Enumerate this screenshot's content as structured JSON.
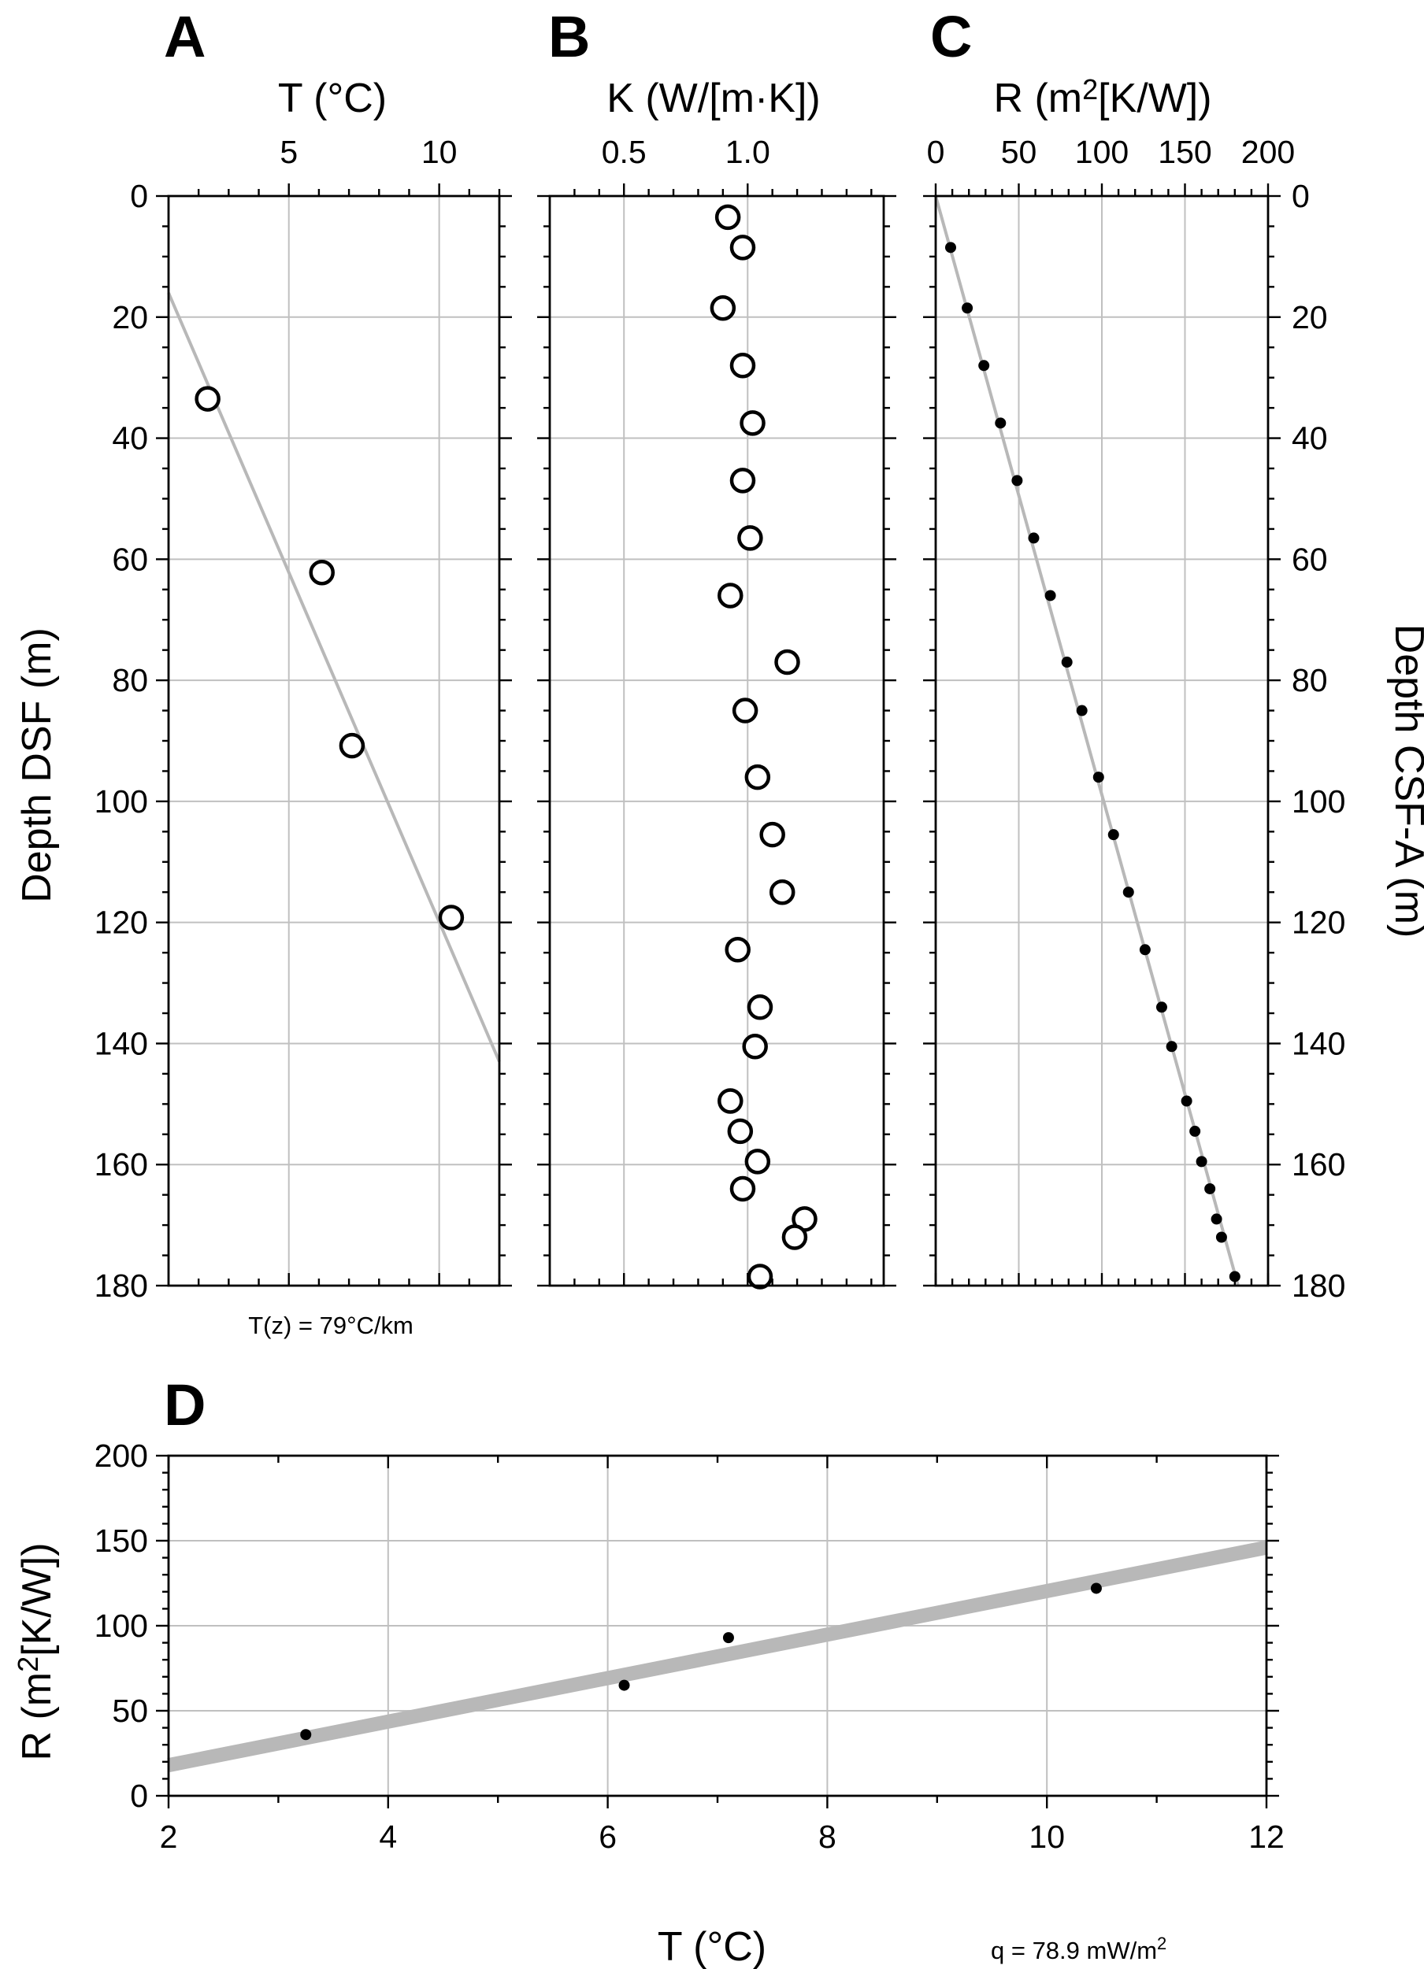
{
  "chart_data": [
    {
      "id": "A",
      "type": "scatter",
      "panel_label": "A",
      "xlabel": "T (°C)",
      "ylabel": "Depth DSF (m)",
      "xlim": [
        1,
        12
      ],
      "ylim": [
        0,
        180
      ],
      "xticks": [
        5,
        10
      ],
      "xminor": [
        2,
        3,
        4,
        6,
        7,
        8,
        9,
        11,
        12
      ],
      "yticks": [
        0,
        20,
        40,
        60,
        80,
        100,
        120,
        140,
        160,
        180
      ],
      "grid": true,
      "marker": "open-circle",
      "x": [
        2.3,
        6.1,
        7.1,
        10.4
      ],
      "y": [
        33.5,
        62.2,
        90.8,
        119.2
      ],
      "fit_line": {
        "x": [
          1,
          12
        ],
        "y": [
          16,
          143
        ]
      },
      "annotation": "T(z) = 79°C/km"
    },
    {
      "id": "B",
      "type": "scatter",
      "panel_label": "B",
      "xlabel": "K (W/[m·K])",
      "xlim": [
        0.2,
        1.55
      ],
      "ylim": [
        0,
        180
      ],
      "xticks": [
        0.5,
        1.0
      ],
      "xtick_labels": [
        "0.5",
        "1.0"
      ],
      "xminor": [
        0.3,
        0.4,
        0.6,
        0.7,
        0.8,
        0.9,
        1.1,
        1.2,
        1.3,
        1.4,
        1.5
      ],
      "yticks": [
        0,
        20,
        40,
        60,
        80,
        100,
        120,
        140,
        160,
        180
      ],
      "grid": true,
      "marker": "open-circle",
      "x": [
        0.92,
        0.98,
        0.9,
        0.98,
        1.02,
        0.98,
        1.01,
        0.93,
        1.16,
        0.99,
        1.04,
        1.1,
        1.14,
        0.96,
        1.05,
        1.03,
        0.93,
        0.97,
        1.04,
        0.98,
        1.23,
        1.19,
        1.05
      ],
      "y": [
        3.5,
        8.5,
        18.5,
        28,
        37.5,
        47,
        56.5,
        66,
        77,
        85,
        96,
        105.5,
        115,
        124.5,
        134,
        140.5,
        149.5,
        154.5,
        159.5,
        164,
        169,
        172,
        178.5
      ]
    },
    {
      "id": "C",
      "type": "scatter",
      "panel_label": "C",
      "xlabel": "R (m2[K/W])",
      "ylabel": "Depth CSF-A (m)",
      "xlim": [
        0,
        200
      ],
      "ylim": [
        0,
        180
      ],
      "xticks": [
        0,
        50,
        100,
        150,
        200
      ],
      "xminor": [
        10,
        20,
        30,
        40,
        60,
        70,
        80,
        90,
        110,
        120,
        130,
        140,
        160,
        170,
        180,
        190
      ],
      "yticks": [
        0,
        20,
        40,
        60,
        80,
        100,
        120,
        140,
        160,
        180
      ],
      "grid": true,
      "marker": "dot",
      "x": [
        9,
        19,
        29,
        39,
        49,
        59,
        69,
        79,
        88,
        98,
        107,
        116,
        126,
        136,
        142,
        151,
        156,
        160,
        165,
        169,
        172,
        180
      ],
      "y": [
        8.5,
        18.5,
        28,
        37.5,
        47,
        56.5,
        66,
        77,
        85,
        96,
        105.5,
        115,
        124.5,
        134,
        140.5,
        149.5,
        154.5,
        159.5,
        164,
        169,
        172,
        178.5
      ],
      "fit_line": {
        "x": [
          0,
          182
        ],
        "y": [
          0,
          180
        ]
      }
    },
    {
      "id": "D",
      "type": "scatter",
      "panel_label": "D",
      "xlabel": "T (°C)",
      "ylabel": "R (m2[K/W])",
      "xlim": [
        2,
        12
      ],
      "ylim": [
        0,
        200
      ],
      "xticks": [
        2,
        4,
        6,
        8,
        10,
        12
      ],
      "xminor": [
        3,
        5,
        7,
        9,
        11
      ],
      "yticks": [
        0,
        50,
        100,
        150,
        200
      ],
      "yminor": [
        10,
        20,
        30,
        40,
        60,
        70,
        80,
        90,
        110,
        120,
        130,
        140,
        160,
        170,
        180,
        190
      ],
      "grid": true,
      "marker": "dot",
      "x": [
        3.25,
        6.15,
        7.1,
        10.45
      ],
      "y": [
        36,
        65,
        93,
        122
      ],
      "fit_line": {
        "x": [
          2,
          12
        ],
        "y": [
          18,
          146
        ]
      },
      "annotation": "q = 78.9 mW/m2"
    }
  ]
}
